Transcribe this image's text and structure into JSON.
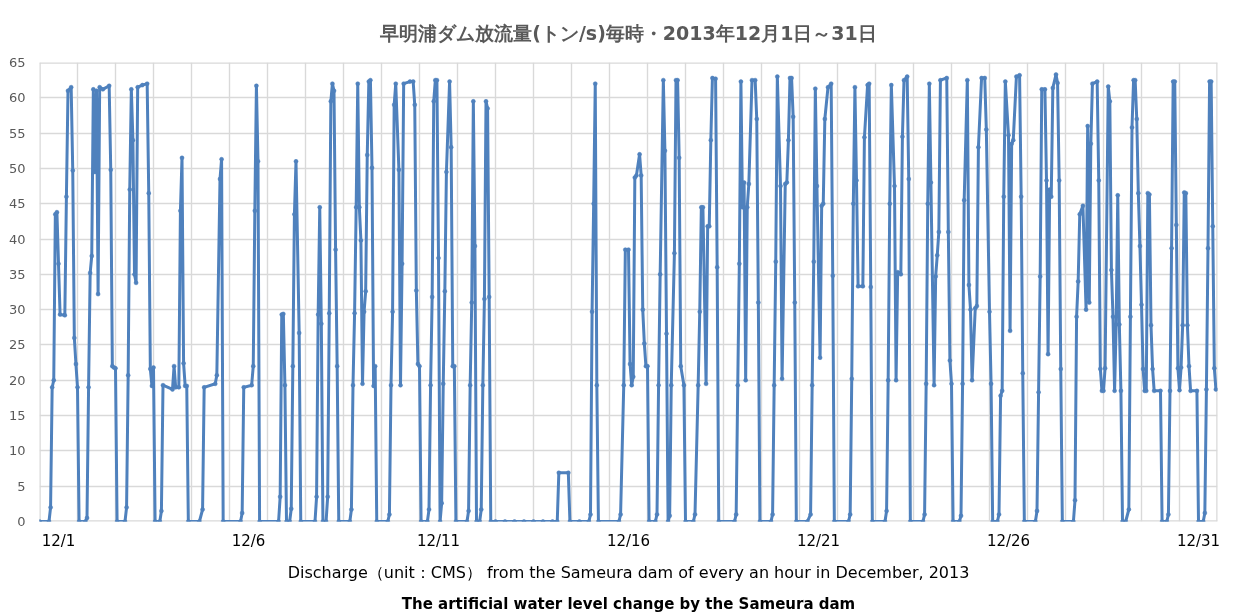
{
  "chart_data": {
    "type": "line",
    "title": "早明浦ダム放流量(トン/s)毎時・2013年12月1日～31日",
    "annotations": [
      "Discharge（unit：CMS） from the Sameura dam of every an hour in December, 2013",
      "The artificial water level change by the Sameura dam"
    ],
    "color": "#4f81bd",
    "marker": "circle",
    "line_style": "solid",
    "grid": true,
    "xlim": [
      "2013-12-01T00:00",
      "2014-01-01T00:00"
    ],
    "ylim": [
      0,
      65
    ],
    "yticks": [
      0,
      5,
      10,
      15,
      20,
      25,
      30,
      35,
      40,
      45,
      50,
      55,
      60,
      65
    ],
    "xticks": [
      {
        "value": "2013-12-01T00:00",
        "label": null
      },
      {
        "value": "2013-12-01T12:00",
        "label": "12/1"
      },
      {
        "value": "2013-12-02T00:00",
        "label": null
      },
      {
        "value": "2013-12-03T00:00",
        "label": null
      },
      {
        "value": "2013-12-04T00:00",
        "label": null
      },
      {
        "value": "2013-12-05T00:00",
        "label": null
      },
      {
        "value": "2013-12-06T00:00",
        "label": null
      },
      {
        "value": "2013-12-06T12:00",
        "label": "12/6"
      },
      {
        "value": "2013-12-07T00:00",
        "label": null
      },
      {
        "value": "2013-12-08T00:00",
        "label": null
      },
      {
        "value": "2013-12-09T00:00",
        "label": null
      },
      {
        "value": "2013-12-10T00:00",
        "label": null
      },
      {
        "value": "2013-12-11T00:00",
        "label": null
      },
      {
        "value": "2013-12-11T12:00",
        "label": "12/11"
      },
      {
        "value": "2013-12-12T00:00",
        "label": null
      },
      {
        "value": "2013-12-13T00:00",
        "label": null
      },
      {
        "value": "2013-12-14T00:00",
        "label": null
      },
      {
        "value": "2013-12-15T00:00",
        "label": null
      },
      {
        "value": "2013-12-16T00:00",
        "label": null
      },
      {
        "value": "2013-12-16T12:00",
        "label": "12/16"
      },
      {
        "value": "2013-12-17T00:00",
        "label": null
      },
      {
        "value": "2013-12-18T00:00",
        "label": null
      },
      {
        "value": "2013-12-19T00:00",
        "label": null
      },
      {
        "value": "2013-12-20T00:00",
        "label": null
      },
      {
        "value": "2013-12-21T00:00",
        "label": null
      },
      {
        "value": "2013-12-21T12:00",
        "label": "12/21"
      },
      {
        "value": "2013-12-22T00:00",
        "label": null
      },
      {
        "value": "2013-12-23T00:00",
        "label": null
      },
      {
        "value": "2013-12-24T00:00",
        "label": null
      },
      {
        "value": "2013-12-25T00:00",
        "label": null
      },
      {
        "value": "2013-12-26T00:00",
        "label": null
      },
      {
        "value": "2013-12-26T12:00",
        "label": "12/26"
      },
      {
        "value": "2013-12-27T00:00",
        "label": null
      },
      {
        "value": "2013-12-28T00:00",
        "label": null
      },
      {
        "value": "2013-12-29T00:00",
        "label": null
      },
      {
        "value": "2013-12-30T00:00",
        "label": null
      },
      {
        "value": "2013-12-31T00:00",
        "label": null
      },
      {
        "value": "2013-12-31T12:00",
        "label": "12/31"
      },
      {
        "value": "2014-01-01T00:00",
        "label": null
      }
    ],
    "x": [
      "2013-12-01T00:00",
      "2013-12-01T06:00",
      "2013-12-01T07:00",
      "2013-12-01T08:00",
      "2013-12-01T09:00",
      "2013-12-01T10:00",
      "2013-12-01T11:00",
      "2013-12-01T12:00",
      "2013-12-01T13:00",
      "2013-12-01T16:00",
      "2013-12-01T17:00",
      "2013-12-01T18:00",
      "2013-12-01T20:00",
      "2013-12-01T21:00",
      "2013-12-01T22:00",
      "2013-12-01T23:00",
      "2013-12-02T00:00",
      "2013-12-02T01:00",
      "2013-12-02T05:00",
      "2013-12-02T06:00",
      "2013-12-02T07:00",
      "2013-12-02T08:00",
      "2013-12-02T09:00",
      "2013-12-02T10:00",
      "2013-12-02T11:00",
      "2013-12-02T12:00",
      "2013-12-02T13:00",
      "2013-12-02T14:00",
      "2013-12-02T16:00",
      "2013-12-02T20:00",
      "2013-12-02T21:00",
      "2013-12-02T22:00",
      "2013-12-02T23:00",
      "2013-12-03T00:00",
      "2013-12-03T01:00",
      "2013-12-03T06:00",
      "2013-12-03T07:00",
      "2013-12-03T08:00",
      "2013-12-03T09:00",
      "2013-12-03T10:00",
      "2013-12-03T11:00",
      "2013-12-03T12:00",
      "2013-12-03T13:00",
      "2013-12-03T14:00",
      "2013-12-03T17:00",
      "2013-12-03T20:00",
      "2013-12-03T21:00",
      "2013-12-03T22:00",
      "2013-12-03T23:00",
      "2013-12-04T00:00",
      "2013-12-04T01:00",
      "2013-12-04T04:00",
      "2013-12-04T05:00",
      "2013-12-04T06:00",
      "2013-12-04T12:00",
      "2013-12-04T13:00",
      "2013-12-04T14:00",
      "2013-12-04T16:00",
      "2013-12-04T17:00",
      "2013-12-04T18:00",
      "2013-12-04T19:00",
      "2013-12-04T20:00",
      "2013-12-04T21:00",
      "2013-12-04T22:00",
      "2013-12-05T05:00",
      "2013-12-05T07:00",
      "2013-12-05T08:00",
      "2013-12-05T15:00",
      "2013-12-05T16:00",
      "2013-12-05T18:00",
      "2013-12-05T19:00",
      "2013-12-05T20:00",
      "2013-12-06T07:00",
      "2013-12-06T08:00",
      "2013-12-06T09:00",
      "2013-12-06T14:00",
      "2013-12-06T15:00",
      "2013-12-06T16:00",
      "2013-12-06T17:00",
      "2013-12-06T18:00",
      "2013-12-06T19:00",
      "2013-12-07T07:00",
      "2013-12-07T08:00",
      "2013-12-07T09:00",
      "2013-12-07T10:00",
      "2013-12-07T11:00",
      "2013-12-07T12:00",
      "2013-12-07T14:00",
      "2013-12-07T15:00",
      "2013-12-07T16:00",
      "2013-12-07T17:00",
      "2013-12-07T18:00",
      "2013-12-07T20:00",
      "2013-12-07T21:00",
      "2013-12-08T06:00",
      "2013-12-08T07:00",
      "2013-12-08T08:00",
      "2013-12-08T09:00",
      "2013-12-08T10:00",
      "2013-12-08T11:00",
      "2013-12-08T13:00",
      "2013-12-08T14:00",
      "2013-12-08T15:00",
      "2013-12-08T16:00",
      "2013-12-08T17:00",
      "2013-12-08T18:00",
      "2013-12-08T19:00",
      "2013-12-08T20:00",
      "2013-12-08T21:00",
      "2013-12-09T04:00",
      "2013-12-09T05:00",
      "2013-12-09T06:00",
      "2013-12-09T07:00",
      "2013-12-09T08:00",
      "2013-12-09T09:00",
      "2013-12-09T10:00",
      "2013-12-09T11:00",
      "2013-12-09T12:00",
      "2013-12-09T13:00",
      "2013-12-09T14:00",
      "2013-12-09T15:00",
      "2013-12-09T16:00",
      "2013-12-09T17:00",
      "2013-12-09T18:00",
      "2013-12-09T19:00",
      "2013-12-09T20:00",
      "2013-12-09T21:00",
      "2013-12-10T04:00",
      "2013-12-10T05:00",
      "2013-12-10T06:00",
      "2013-12-10T07:00",
      "2013-12-10T08:00",
      "2013-12-10T09:00",
      "2013-12-10T11:00",
      "2013-12-10T12:00",
      "2013-12-10T13:00",
      "2013-12-10T14:00",
      "2013-12-10T18:00",
      "2013-12-10T20:00",
      "2013-12-10T21:00",
      "2013-12-10T22:00",
      "2013-12-10T23:00",
      "2013-12-11T00:00",
      "2013-12-11T01:00",
      "2013-12-11T05:00",
      "2013-12-11T06:00",
      "2013-12-11T07:00",
      "2013-12-11T08:00",
      "2013-12-11T09:00",
      "2013-12-11T10:00",
      "2013-12-11T11:00",
      "2013-12-11T12:00",
      "2013-12-11T13:00",
      "2013-12-11T14:00",
      "2013-12-11T15:00",
      "2013-12-11T16:00",
      "2013-12-11T17:00",
      "2013-12-11T19:00",
      "2013-12-11T20:00",
      "2013-12-11T21:00",
      "2013-12-11T22:00",
      "2013-12-11T23:00",
      "2013-12-12T06:00",
      "2013-12-12T07:00",
      "2013-12-12T08:00",
      "2013-12-12T09:00",
      "2013-12-12T10:00",
      "2013-12-12T11:00",
      "2013-12-12T12:00",
      "2013-12-12T14:00",
      "2013-12-12T15:00",
      "2013-12-12T16:00",
      "2013-12-12T17:00",
      "2013-12-12T18:00",
      "2013-12-12T19:00",
      "2013-12-12T20:00",
      "2013-12-12T21:00",
      "2013-12-13T00:00",
      "2013-12-13T06:00",
      "2013-12-13T12:00",
      "2013-12-13T18:00",
      "2013-12-14T00:00",
      "2013-12-14T06:00",
      "2013-12-14T12:00",
      "2013-12-14T15:00",
      "2013-12-14T16:00",
      "2013-12-14T22:00",
      "2013-12-14T23:00",
      "2013-12-15T05:00",
      "2013-12-15T11:00",
      "2013-12-15T12:00",
      "2013-12-15T13:00",
      "2013-12-15T14:00",
      "2013-12-15T15:00",
      "2013-12-15T16:00",
      "2013-12-15T17:00",
      "2013-12-16T06:00",
      "2013-12-16T07:00",
      "2013-12-16T09:00",
      "2013-12-16T10:00",
      "2013-12-16T12:00",
      "2013-12-16T13:00",
      "2013-12-16T14:00",
      "2013-12-16T15:00",
      "2013-12-16T16:00",
      "2013-12-16T17:00",
      "2013-12-16T19:00",
      "2013-12-16T20:00",
      "2013-12-16T21:00",
      "2013-12-16T22:00",
      "2013-12-16T23:00",
      "2013-12-17T00:00",
      "2013-12-17T01:00",
      "2013-12-17T05:00",
      "2013-12-17T06:00",
      "2013-12-17T07:00",
      "2013-12-17T08:00",
      "2013-12-17T10:00",
      "2013-12-17T11:00",
      "2013-12-17T12:00",
      "2013-12-17T13:00",
      "2013-12-17T14:00",
      "2013-12-17T15:00",
      "2013-12-17T17:00",
      "2013-12-17T18:00",
      "2013-12-17T19:00",
      "2013-12-17T20:00",
      "2013-12-17T21:00",
      "2013-12-17T23:00",
      "2013-12-18T00:00",
      "2013-12-18T05:00",
      "2013-12-18T06:00",
      "2013-12-18T08:00",
      "2013-12-18T09:00",
      "2013-12-18T10:00",
      "2013-12-18T11:00",
      "2013-12-18T13:00",
      "2013-12-18T14:00",
      "2013-12-18T15:00",
      "2013-12-18T16:00",
      "2013-12-18T17:00",
      "2013-12-18T19:00",
      "2013-12-18T20:00",
      "2013-12-18T21:00",
      "2013-12-19T07:00",
      "2013-12-19T08:00",
      "2013-12-19T09:00",
      "2013-12-19T10:00",
      "2013-12-19T11:00",
      "2013-12-19T12:00",
      "2013-12-19T13:00",
      "2013-12-19T14:00",
      "2013-12-19T15:00",
      "2013-12-19T16:00",
      "2013-12-19T18:00",
      "2013-12-19T20:00",
      "2013-12-19T21:00",
      "2013-12-19T22:00",
      "2013-12-19T23:00",
      "2013-12-20T06:00",
      "2013-12-20T07:00",
      "2013-12-20T08:00",
      "2013-12-20T09:00",
      "2013-12-20T10:00",
      "2013-12-20T12:00",
      "2013-12-20T13:00",
      "2013-12-20T15:00",
      "2013-12-20T16:00",
      "2013-12-20T17:00",
      "2013-12-20T18:00",
      "2013-12-20T19:00",
      "2013-12-20T20:00",
      "2013-12-20T21:00",
      "2013-12-20T22:00",
      "2013-12-21T05:00",
      "2013-12-21T07:00",
      "2013-12-21T08:00",
      "2013-12-21T09:00",
      "2013-12-21T10:00",
      "2013-12-21T11:00",
      "2013-12-21T13:00",
      "2013-12-21T14:00",
      "2013-12-21T15:00",
      "2013-12-21T16:00",
      "2013-12-21T18:00",
      "2013-12-21T20:00",
      "2013-12-21T21:00",
      "2013-12-21T22:00",
      "2013-12-22T07:00",
      "2013-12-22T08:00",
      "2013-12-22T09:00",
      "2013-12-22T10:00",
      "2013-12-22T11:00",
      "2013-12-22T12:00",
      "2013-12-22T13:00",
      "2013-12-22T16:00",
      "2013-12-22T17:00",
      "2013-12-22T19:00",
      "2013-12-22T20:00",
      "2013-12-22T21:00",
      "2013-12-22T22:00",
      "2013-12-23T06:00",
      "2013-12-23T07:00",
      "2013-12-23T08:00",
      "2013-12-23T09:00",
      "2013-12-23T10:00",
      "2013-12-23T12:00",
      "2013-12-23T13:00",
      "2013-12-23T14:00",
      "2013-12-23T16:00",
      "2013-12-23T17:00",
      "2013-12-23T18:00",
      "2013-12-23T20:00",
      "2013-12-23T21:00",
      "2013-12-23T22:00",
      "2013-12-24T06:00",
      "2013-12-24T07:00",
      "2013-12-24T08:00",
      "2013-12-24T09:00",
      "2013-12-24T10:00",
      "2013-12-24T11:00",
      "2013-12-24T13:00",
      "2013-12-24T14:00",
      "2013-12-24T15:00",
      "2013-12-24T16:00",
      "2013-12-24T17:00",
      "2013-12-24T21:00",
      "2013-12-24T22:00",
      "2013-12-24T23:00",
      "2013-12-25T00:00",
      "2013-12-25T01:00",
      "2013-12-25T05:00",
      "2013-12-25T06:00",
      "2013-12-25T07:00",
      "2013-12-25T08:00",
      "2013-12-25T10:00",
      "2013-12-25T11:00",
      "2013-12-25T12:00",
      "2013-12-25T13:00",
      "2013-12-25T15:00",
      "2013-12-25T16:00",
      "2013-12-25T17:00",
      "2013-12-25T19:00",
      "2013-12-25T21:00",
      "2013-12-25T22:00",
      "2013-12-26T00:00",
      "2013-12-26T01:00",
      "2013-12-26T02:00",
      "2013-12-26T05:00",
      "2013-12-26T06:00",
      "2013-12-26T07:00",
      "2013-12-26T08:00",
      "2013-12-26T09:00",
      "2013-12-26T10:00",
      "2013-12-26T12:00",
      "2013-12-26T13:00",
      "2013-12-26T14:00",
      "2013-12-26T15:00",
      "2013-12-26T17:00",
      "2013-12-26T19:00",
      "2013-12-26T20:00",
      "2013-12-26T21:00",
      "2013-12-26T22:00",
      "2013-12-27T05:00",
      "2013-12-27T06:00",
      "2013-12-27T07:00",
      "2013-12-27T08:00",
      "2013-12-27T09:00",
      "2013-12-27T11:00",
      "2013-12-27T12:00",
      "2013-12-27T13:00",
      "2013-12-27T14:00",
      "2013-12-27T15:00",
      "2013-12-27T16:00",
      "2013-12-27T18:00",
      "2013-12-27T19:00",
      "2013-12-27T20:00",
      "2013-12-27T21:00",
      "2013-12-27T22:00",
      "2013-12-28T05:00",
      "2013-12-28T06:00",
      "2013-12-28T07:00",
      "2013-12-28T08:00",
      "2013-12-28T09:00",
      "2013-12-28T11:00",
      "2013-12-28T13:00",
      "2013-12-28T14:00",
      "2013-12-28T15:00",
      "2013-12-28T16:00",
      "2013-12-28T17:00",
      "2013-12-28T20:00",
      "2013-12-28T21:00",
      "2013-12-28T22:00",
      "2013-12-28T23:00",
      "2013-12-29T00:00",
      "2013-12-29T01:00",
      "2013-12-29T03:00",
      "2013-12-29T04:00",
      "2013-12-29T05:00",
      "2013-12-29T06:00",
      "2013-12-29T07:00",
      "2013-12-29T08:00",
      "2013-12-29T09:00",
      "2013-12-29T10:00",
      "2013-12-29T11:00",
      "2013-12-29T12:00",
      "2013-12-29T14:00",
      "2013-12-29T16:00",
      "2013-12-29T17:00",
      "2013-12-29T18:00",
      "2013-12-29T19:00",
      "2013-12-29T20:00",
      "2013-12-29T21:00",
      "2013-12-29T22:00",
      "2013-12-29T23:00",
      "2013-12-30T00:00",
      "2013-12-30T01:00",
      "2013-12-30T02:00",
      "2013-12-30T03:00",
      "2013-12-30T04:00",
      "2013-12-30T05:00",
      "2013-12-30T06:00",
      "2013-12-30T07:00",
      "2013-12-30T08:00",
      "2013-12-30T12:00",
      "2013-12-30T13:00",
      "2013-12-30T16:00",
      "2013-12-30T17:00",
      "2013-12-30T18:00",
      "2013-12-30T19:00",
      "2013-12-30T20:00",
      "2013-12-30T21:00",
      "2013-12-30T22:00",
      "2013-12-30T23:00",
      "2013-12-31T00:00",
      "2013-12-31T01:00",
      "2013-12-31T02:00",
      "2013-12-31T03:00",
      "2013-12-31T04:00",
      "2013-12-31T05:00",
      "2013-12-31T06:00",
      "2013-12-31T07:00",
      "2013-12-31T11:00",
      "2013-12-31T12:00",
      "2013-12-31T15:00",
      "2013-12-31T16:00",
      "2013-12-31T17:00",
      "2013-12-31T18:00",
      "2013-12-31T19:00",
      "2013-12-31T20:00",
      "2013-12-31T21:00",
      "2013-12-31T22:00",
      "2013-12-31T23:00"
    ],
    "values": [
      0,
      0,
      2,
      19,
      20,
      43.5,
      43.8,
      36.5,
      29.3,
      29.2,
      46,
      61,
      61.5,
      49.7,
      26,
      22.3,
      19,
      0,
      0,
      0.5,
      19,
      35.2,
      37.6,
      61.2,
      49.5,
      61,
      32.2,
      61.5,
      61.2,
      61.7,
      49.8,
      22,
      21.8,
      21.7,
      0,
      0,
      2,
      20.7,
      47,
      61.2,
      54,
      35,
      33.8,
      61.5,
      61.8,
      62,
      46.5,
      21.6,
      19.2,
      21.8,
      0,
      0,
      1.5,
      19.3,
      18.7,
      22,
      19,
      19,
      44,
      51.5,
      22.4,
      19.2,
      19.2,
      0,
      0,
      1.7,
      19,
      19.5,
      20.7,
      48.5,
      51.3,
      0,
      0,
      1.2,
      19,
      19.3,
      22,
      44,
      61.7,
      51,
      0,
      0,
      3.5,
      29.3,
      29.4,
      19.3,
      0,
      0,
      1.8,
      22,
      43.5,
      51,
      26.7,
      0,
      0,
      3.5,
      29.3,
      44.5,
      28,
      0,
      0,
      3.5,
      29.5,
      59.5,
      62,
      61,
      38.5,
      22,
      0,
      0,
      1.7,
      19.3,
      29.5,
      44.5,
      62,
      44.5,
      39.8,
      19.5,
      29.7,
      32.6,
      51.9,
      62.3,
      62.5,
      50.1,
      19.2,
      22,
      0,
      0,
      1,
      19.3,
      29.7,
      59,
      62,
      49.8,
      19.3,
      36.5,
      62,
      62.3,
      62.3,
      59,
      32.7,
      22.3,
      22,
      0,
      0,
      1.7,
      19.3,
      31.8,
      59.5,
      62.5,
      62.5,
      37.3,
      0,
      2.6,
      19.5,
      32.6,
      49.5,
      62.3,
      53,
      22,
      22,
      0,
      0,
      1.5,
      19.3,
      31,
      59.5,
      39,
      0,
      0,
      1.7,
      19.3,
      31.5,
      59.5,
      58.5,
      31.8,
      0,
      0,
      0,
      0,
      0,
      0,
      0,
      0,
      0,
      6.9,
      6.9,
      0,
      0,
      0,
      1,
      29.7,
      45,
      62,
      19.3,
      0,
      0,
      1,
      19.3,
      38.5,
      38.5,
      22.3,
      19.3,
      20.5,
      48.7,
      49,
      52,
      49,
      30,
      25.2,
      22,
      22,
      0,
      0,
      1,
      19.3,
      35,
      62.5,
      52.5,
      26.6,
      0,
      0.8,
      19.3,
      38,
      62.5,
      62.5,
      51.5,
      22,
      19.3,
      0,
      0,
      1,
      19.3,
      29.7,
      44.5,
      44.5,
      19.5,
      41.8,
      41.8,
      54,
      62.8,
      62.7,
      36,
      0,
      0,
      1,
      19.3,
      36.5,
      62.3,
      44.5,
      48,
      20,
      44.5,
      47.8,
      62.5,
      62.5,
      57,
      31,
      0,
      0,
      1,
      19.3,
      36.8,
      63,
      47.5,
      20.2,
      47.8,
      48,
      54,
      62.8,
      62.8,
      57.3,
      31,
      0,
      0,
      1,
      19.3,
      36.8,
      61.3,
      47.5,
      23.2,
      44.7,
      45,
      57,
      61.5,
      62,
      34.8,
      0,
      0,
      1,
      20.2,
      45,
      61.5,
      48.3,
      33.3,
      33.3,
      54.4,
      61.8,
      62,
      33.2,
      0,
      0,
      1.5,
      20,
      45,
      61.8,
      47.5,
      20,
      35.3,
      35,
      54.5,
      62.5,
      63,
      48.5,
      0,
      0,
      1,
      19.5,
      45,
      62,
      48,
      19.3,
      34.7,
      37.7,
      41,
      62.5,
      62.8,
      41,
      22.8,
      19.5,
      0,
      0,
      0.8,
      19.5,
      45.5,
      62.5,
      33.5,
      30,
      20,
      30.2,
      30.5,
      53,
      62.8,
      62.8,
      55.5,
      29.7,
      19.5,
      0,
      0,
      1,
      17.8,
      18.5,
      46,
      62.3,
      54.7,
      27,
      53.5,
      54,
      63,
      63.2,
      46,
      21,
      0,
      0,
      1.5,
      18.3,
      34.7,
      61.2,
      61.2,
      48.3,
      23.7,
      47,
      46,
      61.4,
      63.3,
      62.1,
      48.3,
      21.6,
      0,
      0,
      3,
      29,
      34,
      43.5,
      44.7,
      30,
      56,
      31,
      53.5,
      62,
      62.3,
      48.3,
      21.6,
      18.5,
      18.5,
      21.7,
      61.6,
      59.5,
      35.6,
      29,
      18.5,
      27.9,
      46.2,
      27.9,
      18.5,
      0,
      0,
      1.7,
      29,
      55.8,
      62.5,
      62.5,
      57,
      46.5,
      39,
      30.7,
      21.6,
      18.5,
      18.5,
      46.5,
      46.3,
      27.8,
      21.6,
      18.5,
      18.5,
      0,
      0,
      1,
      18.5,
      38.7,
      62.3,
      62.3,
      42,
      21.7,
      18.6,
      21.8,
      27.8,
      46.6,
      46.5,
      27.8,
      22,
      18.5,
      18.5,
      0,
      0,
      1.2,
      18.7,
      38.7,
      62.3,
      62.3,
      41.8,
      21.7,
      18.7
    ]
  }
}
